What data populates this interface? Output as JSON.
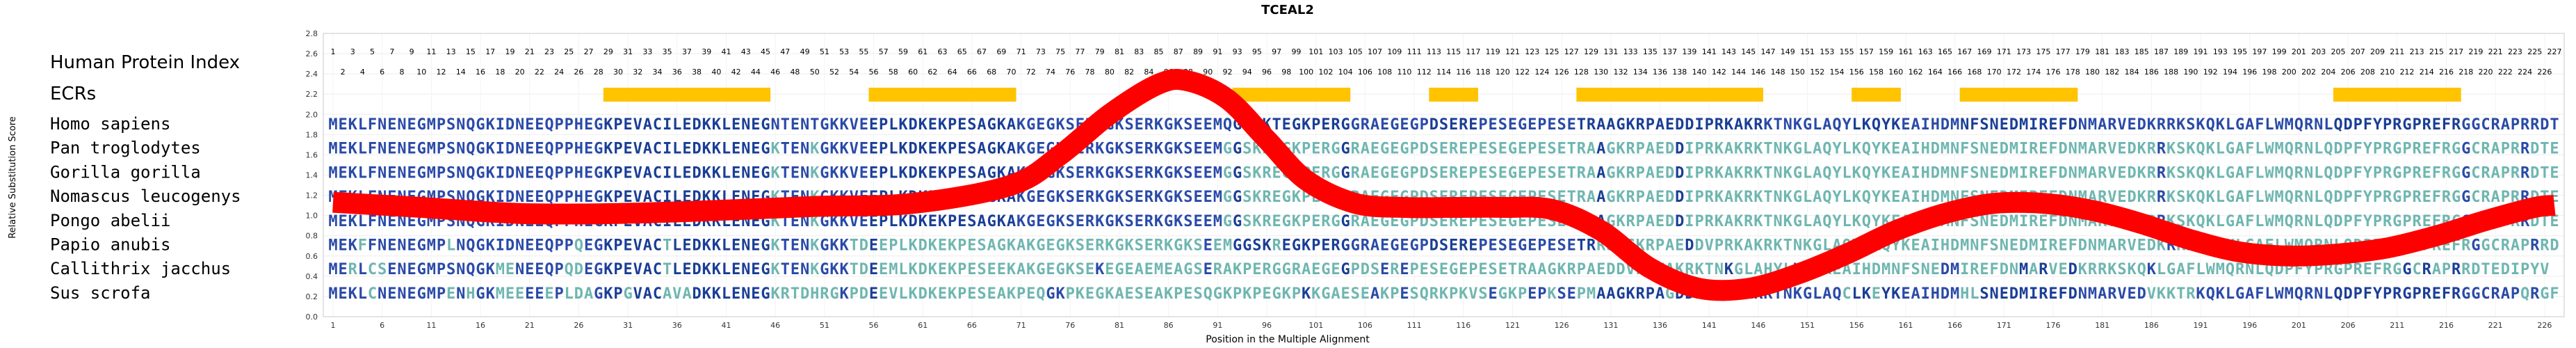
{
  "chart_data": {
    "type": "line",
    "title": "TCEAL2",
    "xlabel": "Position in the Multiple Alignment",
    "ylabel": "Relative Substitution Score",
    "ylim": [
      0.0,
      2.8
    ],
    "xlim": [
      1,
      227
    ],
    "grid": true,
    "y_ticks": [
      "0.0",
      "0.2",
      "0.4",
      "0.6",
      "0.8",
      "1.0",
      "1.2",
      "1.4",
      "1.6",
      "1.8",
      "2.0",
      "2.2",
      "2.4",
      "2.6",
      "2.8"
    ],
    "x_ticks": [
      "1",
      "6",
      "11",
      "16",
      "21",
      "26",
      "31",
      "36",
      "41",
      "46",
      "51",
      "56",
      "61",
      "66",
      "71",
      "76",
      "81",
      "86",
      "91",
      "96",
      "101",
      "106",
      "111",
      "116",
      "121",
      "126",
      "131",
      "136",
      "141",
      "146",
      "151",
      "156",
      "161",
      "166",
      "171",
      "176",
      "181",
      "186",
      "191",
      "196",
      "201",
      "206",
      "211",
      "216",
      "221",
      "226"
    ],
    "index_label": "Human Protein Index",
    "ecr_label": "ECRs",
    "ecrs": [
      [
        29,
        45
      ],
      [
        56,
        70
      ],
      [
        93,
        104
      ],
      [
        113,
        117
      ],
      [
        128,
        146
      ],
      [
        156,
        160
      ],
      [
        167,
        178
      ],
      [
        205,
        217
      ]
    ],
    "curve": {
      "name": "Relative Substitution Score",
      "color": "#ff0000",
      "x": [
        1,
        10,
        20,
        30,
        40,
        50,
        60,
        70,
        75,
        80,
        85,
        88,
        92,
        96,
        100,
        105,
        110,
        115,
        120,
        125,
        130,
        135,
        140,
        145,
        150,
        155,
        160,
        165,
        170,
        175,
        180,
        185,
        190,
        195,
        200,
        205,
        210,
        215,
        220,
        225,
        227
      ],
      "y": [
        1.13,
        1.08,
        1.02,
        1.02,
        1.05,
        1.09,
        1.12,
        1.3,
        1.6,
        2.0,
        2.3,
        2.33,
        2.15,
        1.75,
        1.35,
        1.12,
        1.08,
        1.08,
        1.08,
        1.06,
        0.85,
        0.48,
        0.28,
        0.28,
        0.42,
        0.62,
        0.85,
        1.02,
        1.12,
        1.12,
        1.05,
        0.92,
        0.76,
        0.64,
        0.6,
        0.62,
        0.68,
        0.8,
        0.95,
        1.08,
        1.1
      ]
    },
    "sequences": [
      {
        "species": "Homo sapiens",
        "seq": "MEKLFNENEGMPSNQGKIDNEEQPPHEGKPEVACILEDKKLENEGNTENTGKKVEEPLKDKEKPESAGKAKGEGKSERKGKSERKGKSEEMQGGSKTEGKPERGGRAEGEGPDSEREPESEGEPESETRAAGKRPAEDDIPRKAKRKTNKGLAQYLKQYKEAIHDMNFSNEDMIREFDNMARVEDKRRKSKQKLGAFLWMQRNLQDPFYPRGPREFRGGCRAPRRDTEDIPYV"
      },
      {
        "species": "Pan troglodytes",
        "seq": "MEKLFNENEGMPSNQGKIDNEEQPPHEGKPEVACILEDKKLENEGKTENKGKKVEEPLKDKEKPESAGKAKGEGKSERKGKSERKGKSEEMGGSKREGKPERGGRAEGEGPDSEREPESEGEPESETRAAGKRPAEDDIPRKAKRKTNKGLAQYLKQYKEAIHDMNFSNEDMIREFDNMARVEDKRRKSKQKLGAFLWMQRNLQDPFYPRGPREFRGGCRAPRRDTEDIPYV"
      },
      {
        "species": "Gorilla gorilla",
        "seq": "MEKLFNENEGMPSNQGKIDNEEQPPHEGKPEVACILEDKKLENEGKTENKGKKVEEPLKDKEKPESAGKAKGEGKSERKGKSERKGKSEEMGGSKREGKPERGGRAEGEGPDSEREPESEGEPESETRAAGKRPAEDDIPRKAKRKTNKGLAQYLKQYKEAIHDMNFSNEDMIREFDNMARVEDKRRKSKQKLGAFLWMQRNLQDPFYPRGPREFRGGCRAPRRDTEDIPYV"
      },
      {
        "species": "Nomascus leucogenys",
        "seq": "MEKLFNENEGMPSNQGKIDNEEQPPHEGKPEVACILEDKKLENEGKTENKGKKVEEPLKDKEKPESAGKAKGEGKSERKGKSERKGKSEEMGGSKREGKPERGGRAEGEGPDSEREPESEGEPESETRAAGKRPAEDDIPRKAKRKTNKGLAQYLKQYKEAIHDMNFSNEDMIREFDNMARVEDKRRKSKQKLGAFLWMQRNLQDPFYPRGPREFRGGCRAPRRDTEDIPYV"
      },
      {
        "species": "Pongo abelii",
        "seq": "MEKLFNENEGMPSNQGKIDNEEQPPHEGKPEVACILEDKKLENEGKTENKGKKVEEPLKDKEKPESAGKAKGEGKSERKGKSERKGKSEEMGGSKREGKPERGGRAEGEGPDSEREPESEGEPESETRAAGKRPAEDDIPRKAKRKTNKGLAQYLKQYKEAIHDMNFSNEDMIREFDNMARVEDKRRKSKQKLGAFLWMQRNLQDPFYPRGPREFRGGCRAPRRDTEDIPYV"
      },
      {
        "species": "Papio anubis",
        "seq": "MEKFFNENEGMPLNQGKIDNEEQPPQEGKPEVACTLEDKKLENEGKTENKGKKTDEEPLKDKEKPESAGKAKGEGKSERKGKSERKGKSEEMGGSKREGKPERGGRAEGEGPDSEREPESEGEPESETRRSAGKRPAEDDVPRKAKRKTNKGLAQYLKQYKEAIHDMNFSNEDMIREFDNMARVEDKRRKSKQKLGAFLWMQRNLQDPFYPRGPREFRGGCRAPRRDTEDIPYV"
      },
      {
        "species": "Callithrix jacchus",
        "seq": "MERLCSENEGMPSNQGKMENEEQPQDEGKPEVACTLEDKKLENEGKTENKGKKTDEEMLKDKEKPESEEKAKGEGKSEKEGEAEMEAGSERAKPERGGRAEGEGPDSEREPESEGEPESETRAAGKRPAEDDVPRKAKRKTNKGLAHYLKQCKEAIHDMNFSNEDMIREFDNMARVEDKRRKSKQKLGAFLWMQRNLQDPFYPRGPREFRGGCRAPRRDTEDIPYV"
      },
      {
        "species": "Sus scrofa",
        "seq": "MEKLCNENEGMPENHGKMEEEEEPLDAGKPGVACAVADKKLENEGKRTDHRGKPDEEVLKDKEKPESEAKPEQGKPKEGKAESEAKPESQGKPKPEGKPKKGAESEAKPESQRKPKVSEGKPEPKSEPMAAGKRPAGDDIPRKAKRKTNKGLAQCLKEYKEAIHDMHLSNEDMIREFDNMARVEDVKKTRKQKLGAFLWMQRNLQDPFYPRGPREFRGGCRAPQRGFEDIPYV"
      }
    ]
  }
}
